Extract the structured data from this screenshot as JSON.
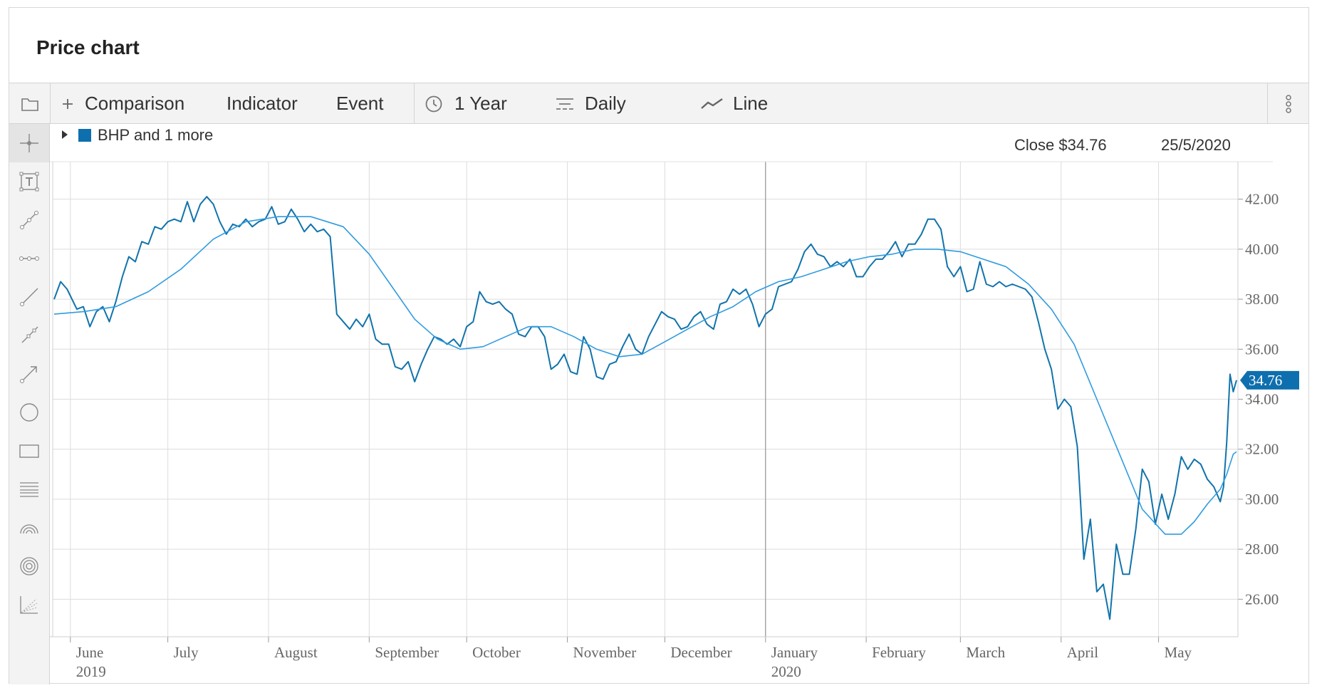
{
  "header": {
    "title": "Price chart"
  },
  "toolbar": {
    "comparison_label": "Comparison",
    "indicator_label": "Indicator",
    "event_label": "Event",
    "range_label": "1 Year",
    "interval_label": "Daily",
    "chart_type_label": "Line"
  },
  "legend": {
    "series_label": "BHP and 1 more",
    "close_label": "Close $34.76",
    "date_label": "25/5/2020"
  },
  "colors": {
    "price": "#1173ab",
    "average": "#2f9be0",
    "accent": "#0e6fae",
    "grid": "#dcdcdc"
  },
  "chart_data": {
    "type": "line",
    "x_start": "2019-05-27",
    "x_end": "2020-05-25",
    "ylim": [
      24.5,
      43.5
    ],
    "y_ticks": [
      "42.00",
      "40.00",
      "38.00",
      "36.00",
      "34.00",
      "32.00",
      "30.00",
      "28.00",
      "26.00"
    ],
    "x_ticks": [
      {
        "date": "2019-06-01",
        "label": "June",
        "sub": "2019"
      },
      {
        "date": "2019-07-01",
        "label": "July",
        "sub": ""
      },
      {
        "date": "2019-08-01",
        "label": "August",
        "sub": ""
      },
      {
        "date": "2019-09-01",
        "label": "September",
        "sub": ""
      },
      {
        "date": "2019-10-01",
        "label": "October",
        "sub": ""
      },
      {
        "date": "2019-11-01",
        "label": "November",
        "sub": ""
      },
      {
        "date": "2019-12-01",
        "label": "December",
        "sub": ""
      },
      {
        "date": "2020-01-01",
        "label": "January",
        "sub": "2020"
      },
      {
        "date": "2020-02-01",
        "label": "February",
        "sub": ""
      },
      {
        "date": "2020-03-01",
        "label": "March",
        "sub": ""
      },
      {
        "date": "2020-04-01",
        "label": "April",
        "sub": ""
      },
      {
        "date": "2020-05-01",
        "label": "May",
        "sub": ""
      }
    ],
    "last_value_label": "34.76",
    "series": [
      {
        "points": [
          [
            "2019-05-27",
            38.0
          ],
          [
            "2019-05-29",
            38.7
          ],
          [
            "2019-05-31",
            38.4
          ],
          [
            "2019-06-03",
            37.6
          ],
          [
            "2019-06-05",
            37.7
          ],
          [
            "2019-06-07",
            36.9
          ],
          [
            "2019-06-09",
            37.5
          ],
          [
            "2019-06-11",
            37.7
          ],
          [
            "2019-06-13",
            37.1
          ],
          [
            "2019-06-15",
            37.9
          ],
          [
            "2019-06-17",
            38.9
          ],
          [
            "2019-06-19",
            39.7
          ],
          [
            "2019-06-21",
            39.5
          ],
          [
            "2019-06-23",
            40.3
          ],
          [
            "2019-06-25",
            40.2
          ],
          [
            "2019-06-27",
            40.9
          ],
          [
            "2019-06-29",
            40.8
          ],
          [
            "2019-07-01",
            41.1
          ],
          [
            "2019-07-03",
            41.2
          ],
          [
            "2019-07-05",
            41.1
          ],
          [
            "2019-07-07",
            41.9
          ],
          [
            "2019-07-09",
            41.1
          ],
          [
            "2019-07-11",
            41.8
          ],
          [
            "2019-07-13",
            42.1
          ],
          [
            "2019-07-15",
            41.8
          ],
          [
            "2019-07-17",
            41.1
          ],
          [
            "2019-07-19",
            40.6
          ],
          [
            "2019-07-21",
            41.0
          ],
          [
            "2019-07-23",
            40.9
          ],
          [
            "2019-07-25",
            41.2
          ],
          [
            "2019-07-27",
            40.9
          ],
          [
            "2019-07-29",
            41.1
          ],
          [
            "2019-07-31",
            41.2
          ],
          [
            "2019-08-02",
            41.7
          ],
          [
            "2019-08-04",
            41.0
          ],
          [
            "2019-08-06",
            41.1
          ],
          [
            "2019-08-08",
            41.6
          ],
          [
            "2019-08-10",
            41.2
          ],
          [
            "2019-08-12",
            40.7
          ],
          [
            "2019-08-14",
            41.0
          ],
          [
            "2019-08-16",
            40.7
          ],
          [
            "2019-08-18",
            40.8
          ],
          [
            "2019-08-20",
            40.5
          ],
          [
            "2019-08-22",
            37.4
          ],
          [
            "2019-08-24",
            37.1
          ],
          [
            "2019-08-26",
            36.8
          ],
          [
            "2019-08-28",
            37.2
          ],
          [
            "2019-08-30",
            36.9
          ],
          [
            "2019-09-01",
            37.4
          ],
          [
            "2019-09-03",
            36.4
          ],
          [
            "2019-09-05",
            36.2
          ],
          [
            "2019-09-07",
            36.2
          ],
          [
            "2019-09-09",
            35.3
          ],
          [
            "2019-09-11",
            35.2
          ],
          [
            "2019-09-13",
            35.5
          ],
          [
            "2019-09-15",
            34.7
          ],
          [
            "2019-09-17",
            35.4
          ],
          [
            "2019-09-19",
            36.0
          ],
          [
            "2019-09-21",
            36.5
          ],
          [
            "2019-09-23",
            36.4
          ],
          [
            "2019-09-25",
            36.2
          ],
          [
            "2019-09-27",
            36.4
          ],
          [
            "2019-09-29",
            36.1
          ],
          [
            "2019-10-01",
            36.9
          ],
          [
            "2019-10-03",
            37.1
          ],
          [
            "2019-10-05",
            38.3
          ],
          [
            "2019-10-07",
            37.9
          ],
          [
            "2019-10-09",
            37.8
          ],
          [
            "2019-10-11",
            37.9
          ],
          [
            "2019-10-13",
            37.6
          ],
          [
            "2019-10-15",
            37.4
          ],
          [
            "2019-10-17",
            36.6
          ],
          [
            "2019-10-19",
            36.5
          ],
          [
            "2019-10-21",
            36.9
          ],
          [
            "2019-10-23",
            36.9
          ],
          [
            "2019-10-25",
            36.5
          ],
          [
            "2019-10-27",
            35.2
          ],
          [
            "2019-10-29",
            35.4
          ],
          [
            "2019-10-31",
            35.8
          ],
          [
            "2019-11-02",
            35.1
          ],
          [
            "2019-11-04",
            35.0
          ],
          [
            "2019-11-06",
            36.5
          ],
          [
            "2019-11-08",
            36.0
          ],
          [
            "2019-11-10",
            34.9
          ],
          [
            "2019-11-12",
            34.8
          ],
          [
            "2019-11-14",
            35.4
          ],
          [
            "2019-11-16",
            35.5
          ],
          [
            "2019-11-18",
            36.1
          ],
          [
            "2019-11-20",
            36.6
          ],
          [
            "2019-11-22",
            36.0
          ],
          [
            "2019-11-24",
            35.8
          ],
          [
            "2019-11-26",
            36.5
          ],
          [
            "2019-11-28",
            37.0
          ],
          [
            "2019-11-30",
            37.5
          ],
          [
            "2019-12-02",
            37.3
          ],
          [
            "2019-12-04",
            37.2
          ],
          [
            "2019-12-06",
            36.8
          ],
          [
            "2019-12-08",
            36.9
          ],
          [
            "2019-12-10",
            37.3
          ],
          [
            "2019-12-12",
            37.5
          ],
          [
            "2019-12-14",
            37.0
          ],
          [
            "2019-12-16",
            36.8
          ],
          [
            "2019-12-18",
            37.8
          ],
          [
            "2019-12-20",
            37.9
          ],
          [
            "2019-12-22",
            38.4
          ],
          [
            "2019-12-24",
            38.2
          ],
          [
            "2019-12-26",
            38.4
          ],
          [
            "2019-12-28",
            37.8
          ],
          [
            "2019-12-30",
            36.9
          ],
          [
            "2020-01-01",
            37.4
          ],
          [
            "2020-01-03",
            37.6
          ],
          [
            "2020-01-05",
            38.5
          ],
          [
            "2020-01-07",
            38.6
          ],
          [
            "2020-01-09",
            38.7
          ],
          [
            "2020-01-11",
            39.2
          ],
          [
            "2020-01-13",
            39.9
          ],
          [
            "2020-01-15",
            40.2
          ],
          [
            "2020-01-17",
            39.8
          ],
          [
            "2020-01-19",
            39.7
          ],
          [
            "2020-01-21",
            39.3
          ],
          [
            "2020-01-23",
            39.5
          ],
          [
            "2020-01-25",
            39.3
          ],
          [
            "2020-01-27",
            39.6
          ],
          [
            "2020-01-29",
            38.9
          ],
          [
            "2020-01-31",
            38.9
          ],
          [
            "2020-02-02",
            39.3
          ],
          [
            "2020-02-04",
            39.6
          ],
          [
            "2020-02-06",
            39.6
          ],
          [
            "2020-02-08",
            39.9
          ],
          [
            "2020-02-10",
            40.3
          ],
          [
            "2020-02-12",
            39.7
          ],
          [
            "2020-02-14",
            40.2
          ],
          [
            "2020-02-16",
            40.2
          ],
          [
            "2020-02-18",
            40.6
          ],
          [
            "2020-02-20",
            41.2
          ],
          [
            "2020-02-22",
            41.2
          ],
          [
            "2020-02-24",
            40.8
          ],
          [
            "2020-02-26",
            39.3
          ],
          [
            "2020-02-28",
            38.9
          ],
          [
            "2020-03-01",
            39.3
          ],
          [
            "2020-03-03",
            38.3
          ],
          [
            "2020-03-05",
            38.4
          ],
          [
            "2020-03-07",
            39.5
          ],
          [
            "2020-03-09",
            38.6
          ],
          [
            "2020-03-11",
            38.5
          ],
          [
            "2020-03-13",
            38.7
          ],
          [
            "2020-03-15",
            38.5
          ],
          [
            "2020-03-17",
            38.6
          ],
          [
            "2020-03-19",
            38.5
          ],
          [
            "2020-03-21",
            38.4
          ],
          [
            "2020-03-23",
            38.1
          ],
          [
            "2020-03-25",
            37.1
          ],
          [
            "2020-03-27",
            36.0
          ],
          [
            "2020-03-29",
            35.2
          ],
          [
            "2020-03-31",
            33.6
          ],
          [
            "2020-04-02",
            34.0
          ],
          [
            "2020-04-04",
            33.7
          ],
          [
            "2020-04-06",
            32.1
          ],
          [
            "2020-04-08",
            27.6
          ],
          [
            "2020-04-10",
            29.2
          ],
          [
            "2020-04-12",
            26.3
          ],
          [
            "2020-04-14",
            26.6
          ],
          [
            "2020-04-16",
            25.2
          ],
          [
            "2020-04-18",
            28.2
          ],
          [
            "2020-04-20",
            27.0
          ],
          [
            "2020-04-22",
            27.0
          ],
          [
            "2020-04-24",
            28.8
          ],
          [
            "2020-04-26",
            31.2
          ],
          [
            "2020-04-28",
            30.7
          ],
          [
            "2020-04-30",
            29.0
          ],
          [
            "2020-05-02",
            30.2
          ],
          [
            "2020-05-04",
            29.2
          ],
          [
            "2020-05-06",
            30.2
          ],
          [
            "2020-05-08",
            31.7
          ],
          [
            "2020-05-10",
            31.2
          ],
          [
            "2020-05-12",
            31.6
          ],
          [
            "2020-05-14",
            31.4
          ],
          [
            "2020-05-16",
            30.8
          ],
          [
            "2020-05-18",
            30.5
          ],
          [
            "2020-05-20",
            29.9
          ],
          [
            "2020-05-21",
            30.5
          ],
          [
            "2020-05-22",
            32.3
          ],
          [
            "2020-05-23",
            35.0
          ],
          [
            "2020-05-24",
            34.3
          ],
          [
            "2020-05-25",
            34.76
          ]
        ]
      },
      {
        "points": [
          [
            "2019-05-27",
            37.4
          ],
          [
            "2019-06-05",
            37.5
          ],
          [
            "2019-06-15",
            37.7
          ],
          [
            "2019-06-25",
            38.3
          ],
          [
            "2019-07-05",
            39.2
          ],
          [
            "2019-07-15",
            40.4
          ],
          [
            "2019-07-25",
            41.1
          ],
          [
            "2019-08-04",
            41.3
          ],
          [
            "2019-08-14",
            41.3
          ],
          [
            "2019-08-24",
            40.9
          ],
          [
            "2019-09-01",
            39.8
          ],
          [
            "2019-09-08",
            38.5
          ],
          [
            "2019-09-15",
            37.2
          ],
          [
            "2019-09-22",
            36.4
          ],
          [
            "2019-09-29",
            36.0
          ],
          [
            "2019-10-06",
            36.1
          ],
          [
            "2019-10-13",
            36.5
          ],
          [
            "2019-10-20",
            36.9
          ],
          [
            "2019-10-27",
            36.9
          ],
          [
            "2019-11-03",
            36.5
          ],
          [
            "2019-11-10",
            36.0
          ],
          [
            "2019-11-17",
            35.7
          ],
          [
            "2019-11-24",
            35.8
          ],
          [
            "2019-12-01",
            36.3
          ],
          [
            "2019-12-08",
            36.8
          ],
          [
            "2019-12-15",
            37.3
          ],
          [
            "2019-12-22",
            37.7
          ],
          [
            "2019-12-29",
            38.3
          ],
          [
            "2020-01-05",
            38.7
          ],
          [
            "2020-01-12",
            38.9
          ],
          [
            "2020-01-19",
            39.2
          ],
          [
            "2020-01-26",
            39.5
          ],
          [
            "2020-02-02",
            39.7
          ],
          [
            "2020-02-09",
            39.8
          ],
          [
            "2020-02-16",
            40.0
          ],
          [
            "2020-02-23",
            40.0
          ],
          [
            "2020-03-01",
            39.9
          ],
          [
            "2020-03-08",
            39.6
          ],
          [
            "2020-03-15",
            39.3
          ],
          [
            "2020-03-22",
            38.6
          ],
          [
            "2020-03-29",
            37.6
          ],
          [
            "2020-04-05",
            36.2
          ],
          [
            "2020-04-12",
            34.0
          ],
          [
            "2020-04-19",
            31.8
          ],
          [
            "2020-04-26",
            29.6
          ],
          [
            "2020-05-03",
            28.6
          ],
          [
            "2020-05-08",
            28.6
          ],
          [
            "2020-05-12",
            29.1
          ],
          [
            "2020-05-16",
            29.8
          ],
          [
            "2020-05-20",
            30.4
          ],
          [
            "2020-05-22",
            31.0
          ],
          [
            "2020-05-24",
            31.8
          ],
          [
            "2020-05-25",
            31.9
          ]
        ]
      }
    ]
  }
}
